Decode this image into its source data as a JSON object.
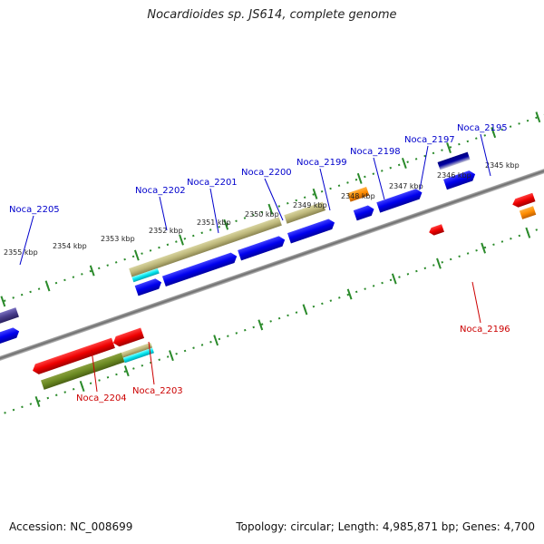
{
  "title": "Nocardioides sp. JS614, complete genome",
  "accession": "Accession: NC_008699",
  "summary": "Topology: circular; Length: 4,985,871 bp; Genes: 4,700",
  "colors": {
    "forward_label": "#0000cc",
    "reverse_label": "#cc0000",
    "tick": "#2a8a2a",
    "backbone": "#808080"
  },
  "kbp_labels": [
    "2355 kbp",
    "2354 kbp",
    "2353 kbp",
    "2352 kbp",
    "2351 kbp",
    "2350 kbp",
    "2349 kbp",
    "2348 kbp",
    "2347 kbp",
    "2346 kbp",
    "2345 kbp"
  ],
  "gene_labels": [
    {
      "text": "Noca_2205",
      "strand": "forward"
    },
    {
      "text": "Noca_2202",
      "strand": "forward"
    },
    {
      "text": "Noca_2201",
      "strand": "forward"
    },
    {
      "text": "Noca_2200",
      "strand": "forward"
    },
    {
      "text": "Noca_2199",
      "strand": "forward"
    },
    {
      "text": "Noca_2198",
      "strand": "forward"
    },
    {
      "text": "Noca_2197",
      "strand": "forward"
    },
    {
      "text": "Noca_2195",
      "strand": "forward"
    },
    {
      "text": "Noca_2196",
      "strand": "reverse"
    },
    {
      "text": "Noca_2204",
      "strand": "reverse"
    },
    {
      "text": "Noca_2203",
      "strand": "reverse"
    }
  ]
}
